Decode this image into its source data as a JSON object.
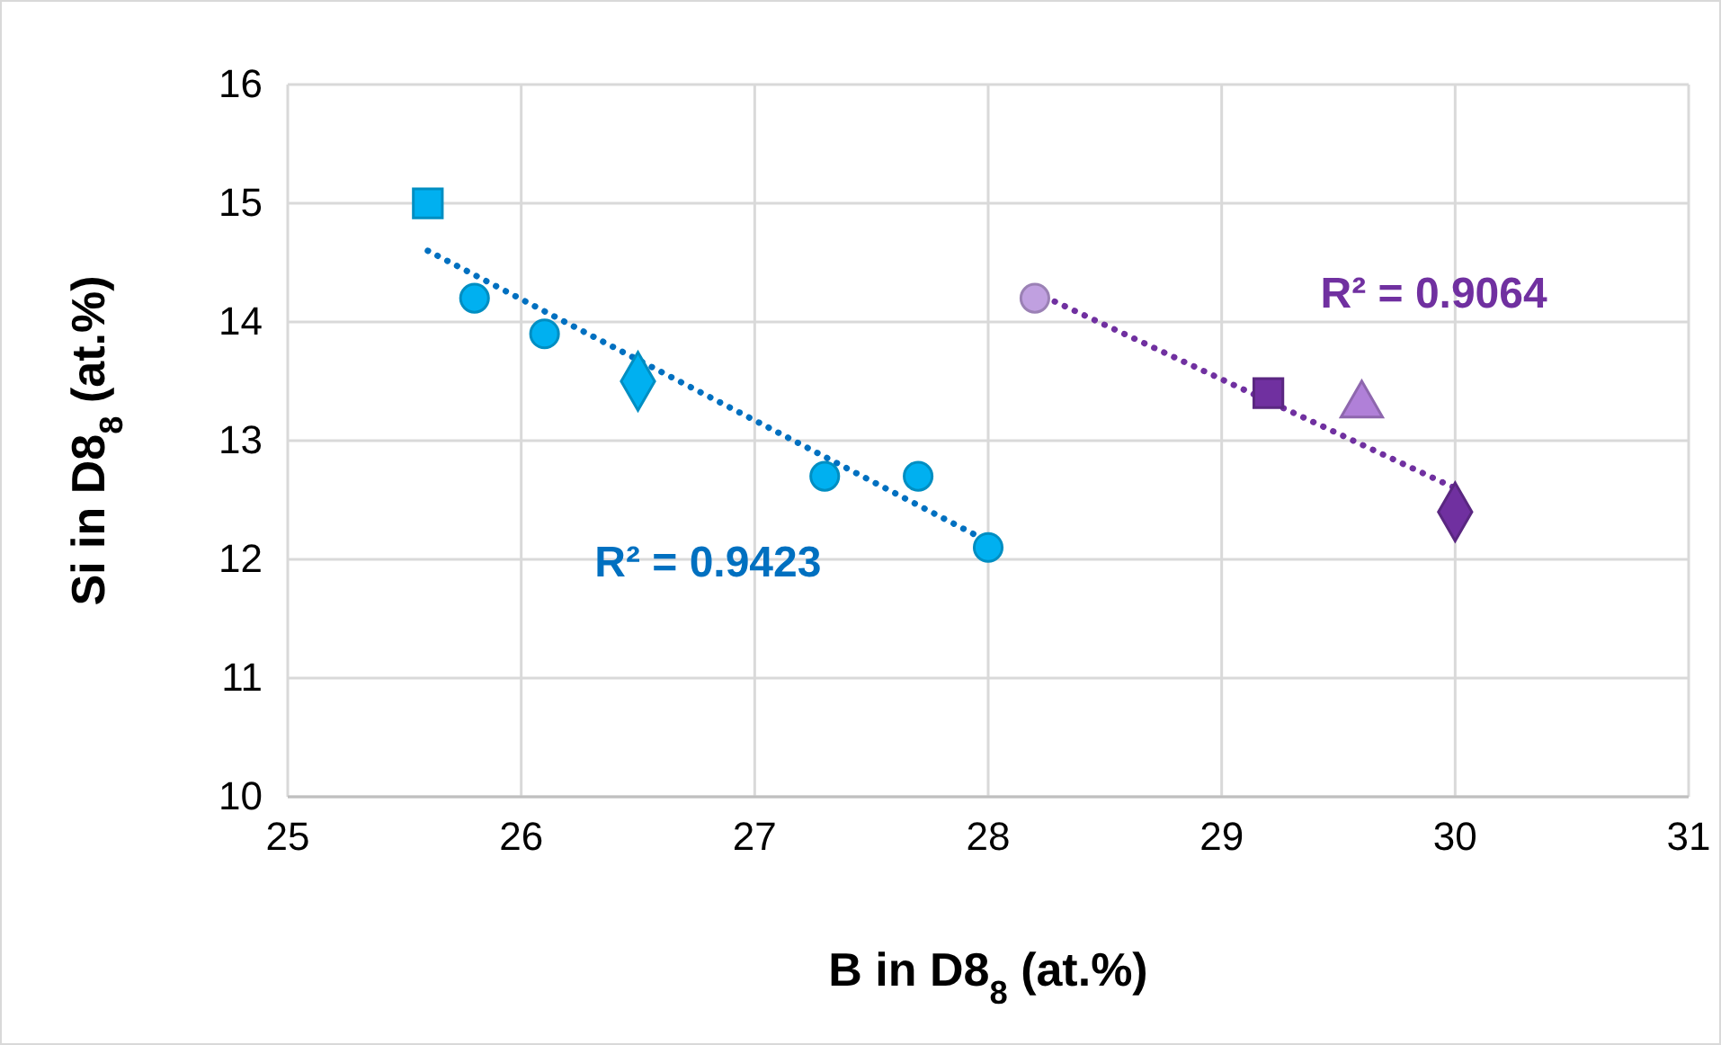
{
  "chart_data": {
    "type": "scatter",
    "xlabel": "B in D8$_{8}$ (at.%)",
    "ylabel": "Si in D8$_{8}$ (at.%)",
    "xlim": [
      25,
      31
    ],
    "xticks": [
      25,
      26,
      27,
      28,
      29,
      30,
      31
    ],
    "ylim": [
      10,
      16
    ],
    "yticks": [
      10,
      11,
      12,
      13,
      14,
      15,
      16
    ],
    "grid": true,
    "series": [
      {
        "type": "line",
        "color": "#0070c0",
        "line_style": "dotted",
        "x": [
          25.6,
          28
        ],
        "values": [
          14.6,
          12.15
        ]
      },
      {
        "type": "line",
        "color": "#7030a0",
        "line_style": "dotted",
        "x": [
          28.2,
          30
        ],
        "values": [
          14.25,
          12.6
        ]
      },
      {
        "color": "#00b0f0",
        "marker": "circle",
        "x": [
          25.8,
          26.1,
          27.3,
          27.7,
          28.0
        ],
        "values": [
          14.2,
          13.9,
          12.7,
          12.7,
          12.1
        ]
      },
      {
        "color": "#00b0f0",
        "marker": "square",
        "x": [
          25.6
        ],
        "values": [
          15.0
        ]
      },
      {
        "color": "#00b0f0",
        "marker": "diamond",
        "x": [
          26.5
        ],
        "values": [
          13.5
        ]
      },
      {
        "color": "#c0a0e0",
        "marker": "circle",
        "x": [
          28.2
        ],
        "values": [
          14.2
        ]
      },
      {
        "color": "#7030a0",
        "marker": "square",
        "x": [
          29.2
        ],
        "values": [
          13.4
        ]
      },
      {
        "color": "#b080d8",
        "marker": "triangle",
        "x": [
          29.6
        ],
        "values": [
          13.3
        ]
      },
      {
        "color": "#7030a0",
        "marker": "diamond",
        "x": [
          30.0
        ],
        "values": [
          12.4
        ]
      }
    ],
    "annotations": [
      "R² = 0.9423",
      "R² = 0.9064"
    ]
  }
}
